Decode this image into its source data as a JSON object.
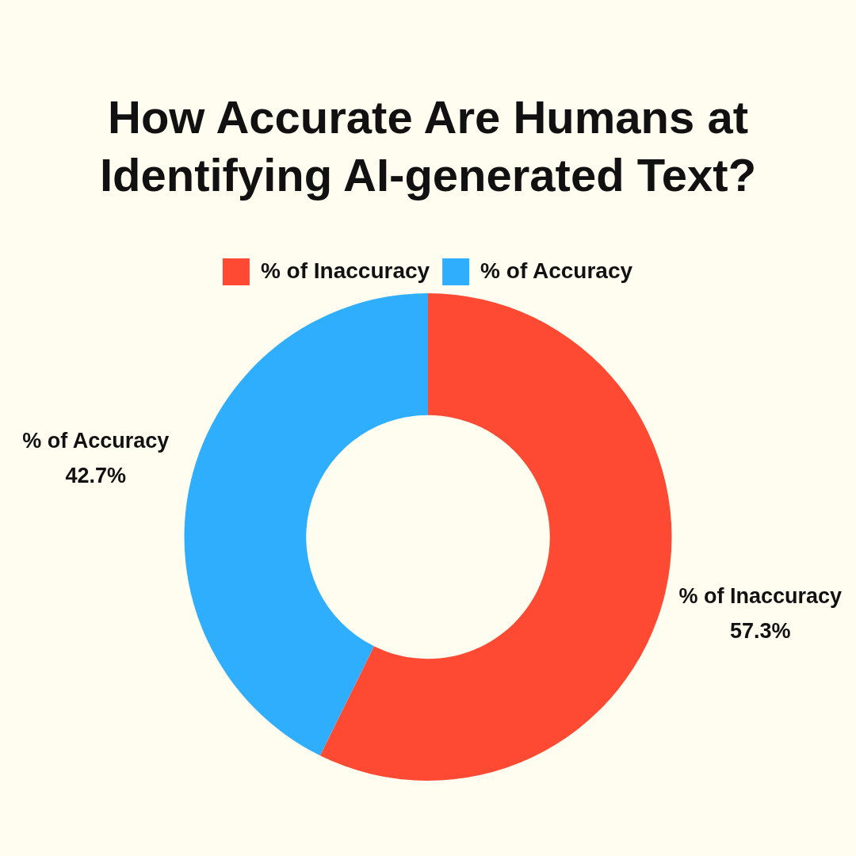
{
  "chart_data": {
    "type": "donut",
    "title": "How Accurate Are Humans at Identifying AI-generated Text?",
    "categories": [
      "% of Inaccuracy",
      "% of Accuracy"
    ],
    "values": [
      57.3,
      42.7
    ],
    "colors": [
      "#ff4a33",
      "#2eaefd"
    ],
    "value_labels": [
      "57.3%",
      "42.7%"
    ],
    "legend": "top"
  }
}
